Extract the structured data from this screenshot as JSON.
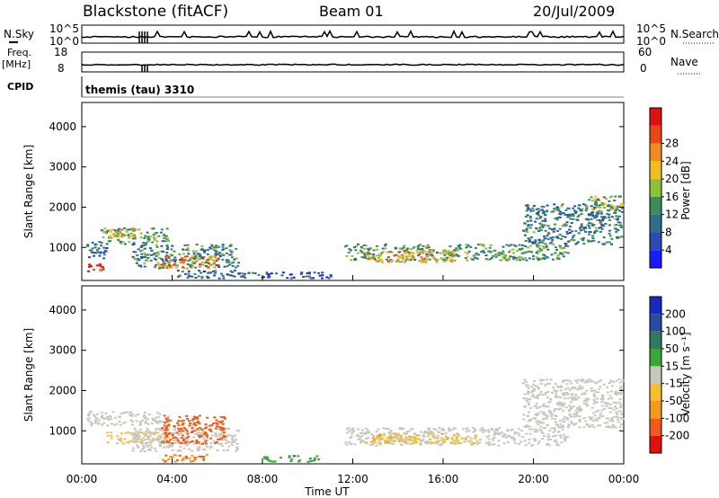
{
  "header": {
    "title": "Blackstone (fitACF)",
    "beam": "Beam 01",
    "date": "20/Jul/2009"
  },
  "top_panels": {
    "nsky_label": "N.Sky",
    "nsky_ticks": [
      "10^5",
      "10^0"
    ],
    "nsearch_label": "N.Search",
    "nsearch_ticks": [
      "10^5",
      "10^0"
    ],
    "freq_label": "Freq.",
    "freq_unit": "[MHz]",
    "freq_ticks": [
      "18",
      "8"
    ],
    "nave_label": "Nave",
    "nave_ticks": [
      "60",
      "0"
    ],
    "cpid_label": "CPID",
    "cpid_value": "themis (tau) 3310"
  },
  "axes": {
    "ylabel": "Slant Range [km]",
    "xlabel": "Time UT",
    "y_ticks": [
      "1000",
      "2000",
      "3000",
      "4000"
    ],
    "x_ticks": [
      "00:00",
      "04:00",
      "08:00",
      "12:00",
      "16:00",
      "20:00",
      "00:00"
    ]
  },
  "power_bar": {
    "label": "Power [dB]",
    "ticks": [
      "4",
      "8",
      "12",
      "16",
      "20",
      "24",
      "28"
    ],
    "colors": [
      "#1a1aff",
      "#2a4cb0",
      "#2f6e8a",
      "#3d8a5a",
      "#8cbf3a",
      "#f0c020",
      "#f08c20",
      "#e84818",
      "#e01010"
    ]
  },
  "velocity_bar": {
    "label": "Velocity [m s⁻¹]",
    "ticks": [
      "-200",
      "-100",
      "-50",
      "-15",
      "15",
      "50",
      "100",
      "200"
    ],
    "colors": [
      "#e01010",
      "#f05a1a",
      "#f59a20",
      "#f5c030",
      "#c8c8c0",
      "#3aa838",
      "#2f7a60",
      "#2a4ca0",
      "#1a2ac0"
    ]
  },
  "chart_data": [
    {
      "type": "heatmap",
      "title": "Power",
      "xlabel": "Time UT",
      "ylabel": "Slant Range [km]",
      "xlim": [
        0,
        24
      ],
      "ylim": [
        180,
        4600
      ],
      "colorbar": {
        "label": "Power [dB]",
        "range": [
          0,
          30
        ]
      },
      "regions": [
        {
          "t": [
            0.1,
            0.9
          ],
          "r": [
            400,
            650
          ],
          "level": 27
        },
        {
          "t": [
            0.2,
            1.1
          ],
          "r": [
            750,
            1200
          ],
          "level": 8
        },
        {
          "t": [
            0.8,
            3.8
          ],
          "r": [
            1100,
            1500
          ],
          "level": 12
        },
        {
          "t": [
            1.2,
            2.4
          ],
          "r": [
            1250,
            1500
          ],
          "level": 20
        },
        {
          "t": [
            2.2,
            6.9
          ],
          "r": [
            500,
            1100
          ],
          "level": 10
        },
        {
          "t": [
            3.3,
            6.0
          ],
          "r": [
            500,
            800
          ],
          "level": 22
        },
        {
          "t": [
            4.2,
            7.8
          ],
          "r": [
            250,
            450
          ],
          "level": 8
        },
        {
          "t": [
            7.8,
            11.0
          ],
          "r": [
            250,
            400
          ],
          "level": 5
        },
        {
          "t": [
            11.6,
            21.5
          ],
          "r": [
            700,
            1100
          ],
          "level": 12
        },
        {
          "t": [
            12.5,
            16.5
          ],
          "r": [
            650,
            950
          ],
          "level": 20
        },
        {
          "t": [
            19.5,
            23.9
          ],
          "r": [
            1100,
            2100
          ],
          "level": 9
        },
        {
          "t": [
            22.3,
            23.9
          ],
          "r": [
            1900,
            2300
          ],
          "level": 14
        }
      ]
    },
    {
      "type": "heatmap",
      "title": "Velocity",
      "xlabel": "Time UT",
      "ylabel": "Slant Range [km]",
      "xlim": [
        0,
        24
      ],
      "ylim": [
        180,
        4600
      ],
      "colorbar": {
        "label": "Velocity [m s⁻¹]",
        "range": [
          -250,
          250
        ]
      },
      "regions": [
        {
          "t": [
            0.2,
            3.8
          ],
          "r": [
            1150,
            1500
          ],
          "level": 0
        },
        {
          "t": [
            1.0,
            3.8
          ],
          "r": [
            700,
            1000
          ],
          "level": -20
        },
        {
          "t": [
            2.2,
            6.9
          ],
          "r": [
            500,
            1100
          ],
          "level": 0
        },
        {
          "t": [
            3.5,
            6.3
          ],
          "r": [
            700,
            1400
          ],
          "level": -120
        },
        {
          "t": [
            3.5,
            5.5
          ],
          "r": [
            250,
            450
          ],
          "level": -100
        },
        {
          "t": [
            8.0,
            10.5
          ],
          "r": [
            250,
            400
          ],
          "level": 40
        },
        {
          "t": [
            11.6,
            21.5
          ],
          "r": [
            650,
            1100
          ],
          "level": 0
        },
        {
          "t": [
            12.5,
            17.5
          ],
          "r": [
            700,
            950
          ],
          "level": -40
        },
        {
          "t": [
            19.5,
            23.9
          ],
          "r": [
            1100,
            2300
          ],
          "level": 0
        }
      ]
    }
  ]
}
